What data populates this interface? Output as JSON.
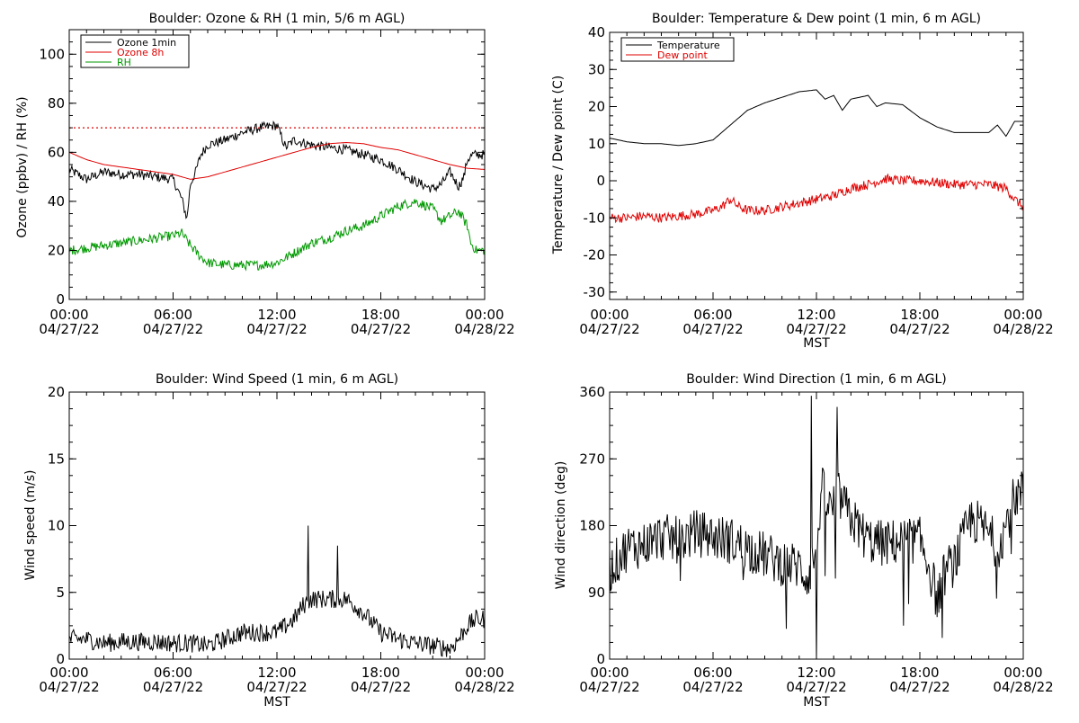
{
  "colors": {
    "black": "#000000",
    "red": "#e00000",
    "green": "#009900",
    "background": "#ffffff"
  },
  "chart_data": [
    {
      "type": "line",
      "title": "Boulder: Ozone & RH (1 min, 5/6 m AGL)",
      "xlabel": "",
      "ylabel": "Ozone (ppbv) / RH (%)",
      "x_unit": "hours since 04/27/22 00:00 MST",
      "xlim": [
        0,
        24
      ],
      "ylim": [
        0,
        110
      ],
      "yticks": [
        0,
        20,
        40,
        60,
        80,
        100
      ],
      "xtick_labels": [
        {
          "time": "00:00",
          "date": "04/27/22"
        },
        {
          "time": "06:00",
          "date": "04/27/22"
        },
        {
          "time": "12:00",
          "date": "04/27/22"
        },
        {
          "time": "18:00",
          "date": "04/27/22"
        },
        {
          "time": "00:00",
          "date": "04/28/22"
        }
      ],
      "legend_position": "top-left",
      "reference_line": {
        "y": 70,
        "color": "#e00000",
        "style": "dotted"
      },
      "series": [
        {
          "name": "Ozone 1min",
          "color": "#000000",
          "noisy": true,
          "x": [
            0,
            1,
            2,
            3,
            4,
            5,
            6,
            6.5,
            6.8,
            7.0,
            7.3,
            7.6,
            8,
            9,
            10,
            11,
            12,
            12.5,
            13,
            14,
            15,
            16,
            17,
            18,
            19,
            20,
            21,
            21.5,
            22,
            22.5,
            22.8,
            23,
            23.3,
            24
          ],
          "y": [
            53,
            49,
            52,
            51,
            51,
            50,
            49,
            41,
            33,
            47,
            52,
            59,
            63,
            65,
            68,
            70,
            71,
            62,
            65,
            63,
            62,
            61,
            59,
            57,
            53,
            48,
            45,
            47,
            52,
            46,
            50,
            57,
            59,
            59
          ]
        },
        {
          "name": "Ozone 8h",
          "color": "#e00000",
          "noisy": false,
          "x": [
            0,
            1,
            2,
            3,
            4,
            5,
            6,
            7,
            8,
            9,
            10,
            11,
            12,
            13,
            14,
            15,
            16,
            17,
            18,
            19,
            20,
            21,
            22,
            23,
            24
          ],
          "y": [
            60,
            57,
            55,
            54,
            53,
            52,
            51,
            49,
            50,
            52,
            54,
            56,
            58,
            60,
            62,
            63.5,
            64,
            63.5,
            62,
            61,
            59,
            57,
            55,
            53.5,
            53
          ]
        },
        {
          "name": "RH",
          "color": "#009900",
          "noisy": true,
          "x": [
            0,
            1,
            2,
            3,
            4,
            5,
            6,
            6.5,
            7,
            7.5,
            8,
            9,
            10,
            11,
            12,
            12.5,
            13,
            13.5,
            14,
            15,
            16,
            17,
            18,
            19,
            20,
            21,
            21.5,
            22,
            22.5,
            23,
            23.2,
            23.5,
            24
          ],
          "y": [
            20,
            21,
            22,
            23,
            24,
            25,
            26,
            27,
            22,
            18,
            15,
            14,
            14,
            14,
            15,
            17,
            19,
            21,
            23,
            25,
            28,
            30,
            34,
            38,
            40,
            37,
            32,
            34,
            36,
            30,
            23,
            20,
            20
          ]
        }
      ]
    },
    {
      "type": "line",
      "title": "Boulder: Temperature & Dew point (1 min, 6 m AGL)",
      "xlabel": "MST",
      "ylabel": "Temperature / Dew point (C)",
      "x_unit": "hours since 04/27/22 00:00 MST",
      "xlim": [
        0,
        24
      ],
      "ylim": [
        -32,
        40
      ],
      "yticks": [
        -30,
        -20,
        -10,
        0,
        10,
        20,
        30,
        40
      ],
      "xtick_labels": [
        {
          "time": "00:00",
          "date": "04/27/22"
        },
        {
          "time": "06:00",
          "date": "04/27/22"
        },
        {
          "time": "12:00",
          "date": "04/27/22"
        },
        {
          "time": "18:00",
          "date": "04/27/22"
        },
        {
          "time": "00:00",
          "date": "04/28/22"
        }
      ],
      "legend_position": "top-left",
      "series": [
        {
          "name": "Temperature",
          "color": "#000000",
          "noisy": false,
          "x": [
            0,
            1,
            2,
            3,
            4,
            5,
            6,
            7,
            8,
            9,
            10,
            11,
            12,
            12.5,
            13,
            13.5,
            14,
            15,
            15.5,
            16,
            17,
            18,
            19,
            20,
            21,
            22,
            22.5,
            23,
            23.5,
            24
          ],
          "y": [
            11.5,
            10.5,
            10,
            10,
            9.5,
            10,
            11,
            15,
            19,
            21,
            22.5,
            24,
            24.5,
            22,
            23,
            19,
            22,
            23,
            20,
            21,
            20.5,
            17,
            14.5,
            13,
            13,
            13,
            15,
            12,
            16,
            16
          ]
        },
        {
          "name": "Dew point",
          "color": "#e00000",
          "noisy": true,
          "x": [
            0,
            1,
            2,
            3,
            4,
            5,
            6,
            6.5,
            7,
            7.5,
            8,
            9,
            10,
            11,
            12,
            13,
            14,
            15,
            16,
            17,
            18,
            19,
            20,
            21,
            22,
            23,
            23.5,
            24
          ],
          "y": [
            -10,
            -10,
            -9.5,
            -10,
            -9.5,
            -9,
            -8,
            -7,
            -5,
            -7,
            -8,
            -8,
            -7,
            -6,
            -5,
            -4,
            -2,
            -1,
            0.5,
            0,
            0,
            -0.5,
            -1,
            -1,
            -1,
            -2,
            -5,
            -7
          ]
        }
      ]
    },
    {
      "type": "line",
      "title": "Boulder: Wind Speed (1 min, 6 m AGL)",
      "xlabel": "MST",
      "ylabel": "Wind speed (m/s)",
      "x_unit": "hours since 04/27/22 00:00 MST",
      "xlim": [
        0,
        24
      ],
      "ylim": [
        0,
        20
      ],
      "yticks": [
        0,
        5,
        10,
        15,
        20
      ],
      "xtick_labels": [
        {
          "time": "00:00",
          "date": "04/27/22"
        },
        {
          "time": "06:00",
          "date": "04/27/22"
        },
        {
          "time": "12:00",
          "date": "04/27/22"
        },
        {
          "time": "18:00",
          "date": "04/27/22"
        },
        {
          "time": "00:00",
          "date": "04/28/22"
        }
      ],
      "series": [
        {
          "name": "",
          "color": "#000000",
          "noisy": true,
          "x": [
            0,
            1,
            2,
            3,
            4,
            5,
            6,
            7,
            8,
            9,
            10,
            11,
            12,
            12.5,
            13,
            13.5,
            14,
            15,
            16,
            17,
            18,
            19,
            20,
            21,
            22,
            22.5,
            23,
            23.5,
            24
          ],
          "y": [
            1.5,
            1.5,
            1.2,
            1.3,
            1.3,
            1.3,
            1.2,
            1.2,
            1.0,
            1.5,
            2.0,
            2.0,
            2.0,
            2.5,
            3.0,
            4.0,
            4.5,
            4.5,
            4.5,
            3.5,
            2.0,
            1.5,
            1.2,
            1.0,
            0.8,
            1.5,
            2.5,
            3.0,
            3.0
          ],
          "spikes": [
            {
              "x": 13.8,
              "y": 10
            },
            {
              "x": 15.5,
              "y": 8.5
            }
          ]
        }
      ]
    },
    {
      "type": "line",
      "title": "Boulder: Wind Direction (1 min, 6 m AGL)",
      "xlabel": "MST",
      "ylabel": "Wind direction (deg)",
      "x_unit": "hours since 04/27/22 00:00 MST",
      "xlim": [
        0,
        24
      ],
      "ylim": [
        0,
        360
      ],
      "yticks": [
        0,
        90,
        180,
        270,
        360
      ],
      "xtick_labels": [
        {
          "time": "00:00",
          "date": "04/27/22"
        },
        {
          "time": "06:00",
          "date": "04/27/22"
        },
        {
          "time": "12:00",
          "date": "04/27/22"
        },
        {
          "time": "18:00",
          "date": "04/27/22"
        },
        {
          "time": "00:00",
          "date": "04/28/22"
        }
      ],
      "series": [
        {
          "name": "",
          "color": "#000000",
          "noisy": true,
          "x": [
            0,
            1,
            2,
            3,
            4,
            5,
            6,
            7,
            8,
            9,
            10,
            11,
            11.5,
            12,
            12.3,
            12.8,
            13.3,
            14,
            15,
            16,
            17,
            18,
            18.5,
            19,
            19.5,
            20,
            21,
            22,
            22.5,
            23,
            23.5,
            24
          ],
          "y": [
            120,
            150,
            155,
            165,
            160,
            170,
            165,
            160,
            150,
            140,
            130,
            125,
            110,
            150,
            230,
            200,
            220,
            190,
            160,
            155,
            160,
            160,
            130,
            80,
            120,
            130,
            190,
            170,
            150,
            180,
            220,
            225
          ],
          "spikes": [
            {
              "x": 11.7,
              "y": 355
            },
            {
              "x": 13.2,
              "y": 340
            },
            {
              "x": 12.0,
              "y": 0
            }
          ]
        }
      ]
    }
  ]
}
